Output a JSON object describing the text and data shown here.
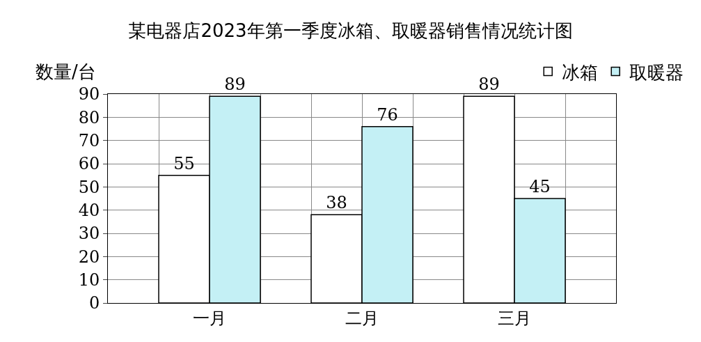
{
  "chart_data": {
    "type": "bar",
    "title": "某电器店2023年第一季度冰箱、取暖器销售情况统计图",
    "ylabel": "数量/台",
    "categories": [
      "一月",
      "二月",
      "三月"
    ],
    "series": [
      {
        "name": "冰箱",
        "color": "#ffffff",
        "values": [
          55,
          38,
          89
        ]
      },
      {
        "name": "取暖器",
        "color": "#c4f0f5",
        "values": [
          89,
          76,
          45
        ]
      }
    ],
    "ylim": [
      0,
      90
    ],
    "yticks": [
      0,
      10,
      20,
      30,
      40,
      50,
      60,
      70,
      80,
      90
    ],
    "grid": true,
    "legend": "top right",
    "data_labels": true
  }
}
